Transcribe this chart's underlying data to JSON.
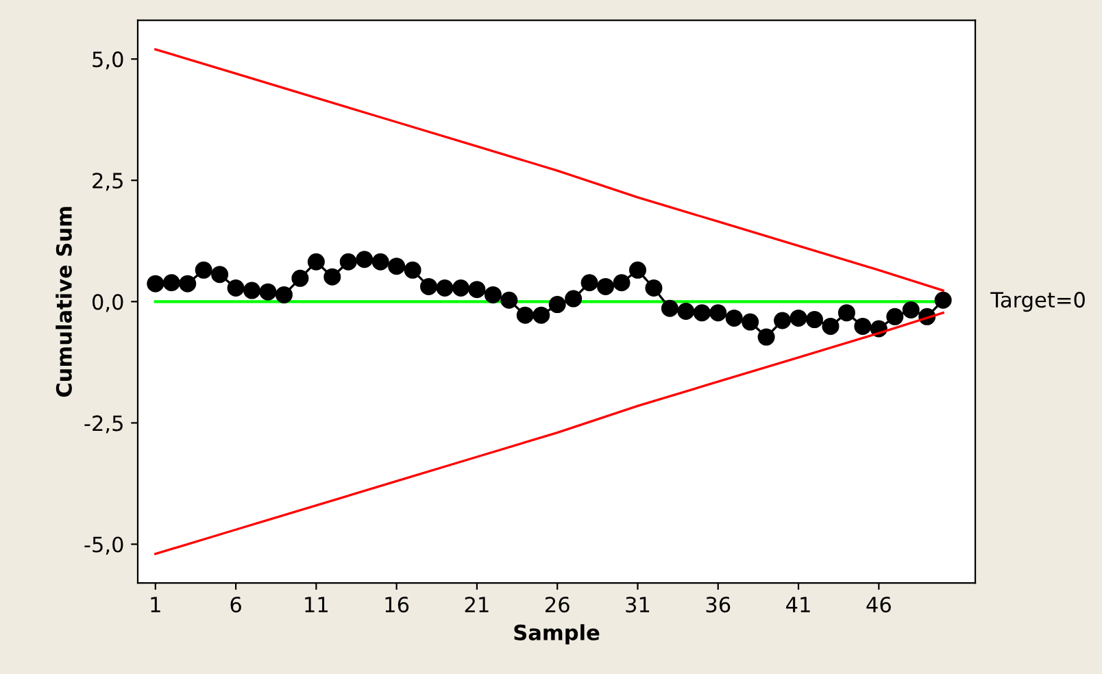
{
  "chart_data": {
    "type": "line",
    "xlabel": "Sample",
    "ylabel": "Cumulative Sum",
    "xlim": [
      -0.1,
      52
    ],
    "xticks": [
      1,
      6,
      11,
      16,
      21,
      26,
      31,
      36,
      41,
      46
    ],
    "ylim": [
      -5.8,
      5.8
    ],
    "yticks": [
      {
        "value": -5,
        "label": "-5,0"
      },
      {
        "value": -2.5,
        "label": "-2,5"
      },
      {
        "value": 0,
        "label": "0,0"
      },
      {
        "value": 2.5,
        "label": "2,5"
      },
      {
        "value": 5,
        "label": "5,0"
      }
    ],
    "grid": false,
    "legend": false,
    "series": [
      {
        "color": "#000000",
        "marker": "circle",
        "x": [
          1,
          2,
          3,
          4,
          5,
          6,
          7,
          8,
          9,
          10,
          11,
          12,
          13,
          14,
          15,
          16,
          17,
          18,
          19,
          20,
          21,
          22,
          23,
          24,
          25,
          26,
          27,
          28,
          29,
          30,
          31,
          32,
          33,
          34,
          35,
          36,
          37,
          38,
          39,
          40,
          41,
          42,
          43,
          44,
          45,
          46,
          47,
          48,
          49,
          50
        ],
        "values": [
          0.37,
          0.39,
          0.37,
          0.65,
          0.56,
          0.28,
          0.23,
          0.2,
          0.14,
          0.48,
          0.82,
          0.51,
          0.82,
          0.87,
          0.82,
          0.73,
          0.65,
          0.31,
          0.28,
          0.28,
          0.25,
          0.14,
          0.03,
          -0.28,
          -0.28,
          -0.06,
          0.06,
          0.39,
          0.31,
          0.39,
          0.65,
          0.28,
          -0.14,
          -0.2,
          -0.23,
          -0.23,
          -0.34,
          -0.42,
          -0.73,
          -0.39,
          -0.34,
          -0.37,
          -0.51,
          -0.23,
          -0.51,
          -0.56,
          -0.31,
          -0.17,
          -0.31,
          0.03
        ]
      },
      {
        "color": "#ff0000",
        "marker": "none",
        "x": [
          1,
          6,
          11,
          16,
          21,
          26,
          31,
          36,
          41,
          46,
          50
        ],
        "values": [
          5.2,
          4.7,
          4.2,
          3.7,
          3.2,
          2.7,
          2.15,
          1.65,
          1.15,
          0.65,
          0.23
        ]
      },
      {
        "color": "#ff0000",
        "marker": "none",
        "x": [
          1,
          6,
          11,
          16,
          21,
          26,
          31,
          36,
          41,
          46,
          50
        ],
        "values": [
          -5.2,
          -4.7,
          -4.2,
          -3.7,
          -3.2,
          -2.7,
          -2.15,
          -1.65,
          -1.15,
          -0.65,
          -0.23
        ]
      }
    ],
    "ref_lines": [
      {
        "axis": "y",
        "value": 0,
        "label": "Target=0",
        "color": "#00ff00"
      }
    ]
  }
}
